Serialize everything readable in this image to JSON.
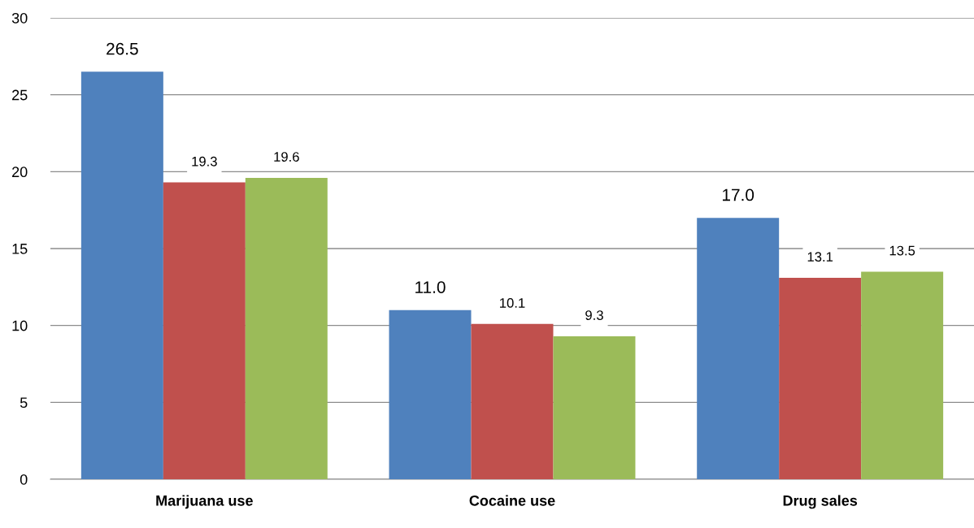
{
  "chart_data": {
    "type": "bar",
    "categories": [
      "Marijuana use",
      "Cocaine use",
      "Drug sales"
    ],
    "series": [
      {
        "color": "#4f81bd",
        "values": [
          26.5,
          11.0,
          17.0
        ],
        "value_labels": [
          "26.5",
          "11.0",
          "17.0"
        ]
      },
      {
        "color": "#c0504d",
        "values": [
          19.3,
          10.1,
          13.1
        ],
        "value_labels": [
          "19.3",
          "10.1",
          "13.1"
        ]
      },
      {
        "color": "#9bbb59",
        "values": [
          19.6,
          9.3,
          13.5
        ],
        "value_labels": [
          "19.6",
          "9.3",
          "13.5"
        ]
      }
    ],
    "ylim": [
      0,
      30
    ],
    "yticks": [
      0,
      5,
      10,
      15,
      20,
      25,
      30
    ],
    "grid": "y"
  }
}
